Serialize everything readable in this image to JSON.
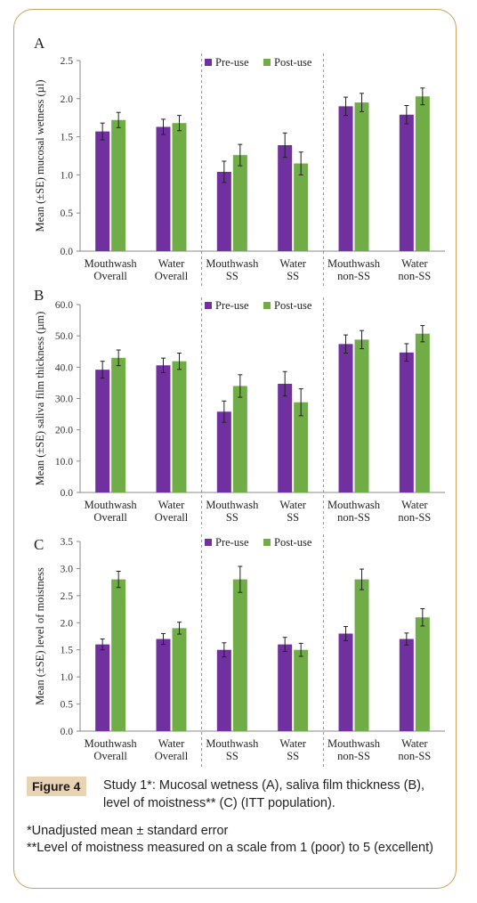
{
  "colors": {
    "pre": "#7030a0",
    "post": "#70ad47",
    "border": "#c8a15a",
    "labelbg": "#e8d3b4"
  },
  "chart_data": [
    {
      "type": "bar",
      "panel_label": "A",
      "ylabel": "Mean (±SE) mucosal wetness (µl)",
      "ylim": [
        0,
        2.5
      ],
      "yticks": [
        "0.0",
        "0.5",
        "1.0",
        "1.5",
        "2.0",
        "2.5"
      ],
      "categories": [
        "Mouthwash\nOverall",
        "Water\nOverall",
        "Mouthwash\nSS",
        "Water\nSS",
        "Mouthwash\nnon-SS",
        "Water\nnon-SS"
      ],
      "legend": "top",
      "series": [
        {
          "name": "Pre-use",
          "values": [
            1.57,
            1.63,
            1.04,
            1.39,
            1.9,
            1.79
          ],
          "err": [
            0.11,
            0.1,
            0.14,
            0.16,
            0.12,
            0.12
          ]
        },
        {
          "name": "Post-use",
          "values": [
            1.72,
            1.68,
            1.26,
            1.15,
            1.95,
            2.03
          ],
          "err": [
            0.1,
            0.1,
            0.14,
            0.15,
            0.12,
            0.11
          ]
        }
      ]
    },
    {
      "type": "bar",
      "panel_label": "B",
      "ylabel": "Mean (±SE) saliva film thickness (µm)",
      "ylim": [
        0,
        60
      ],
      "yticks": [
        "0.0",
        "10.0",
        "20.0",
        "30.0",
        "40.0",
        "50.0",
        "60.0"
      ],
      "categories": [
        "Mouthwash\nOverall",
        "Water\nOverall",
        "Mouthwash\nSS",
        "Water\nSS",
        "Mouthwash\nnon-SS",
        "Water\nnon-SS"
      ],
      "legend": "top",
      "series": [
        {
          "name": "Pre-use",
          "values": [
            39.2,
            40.6,
            25.8,
            34.7,
            47.4,
            44.7
          ],
          "err": [
            2.7,
            2.3,
            3.4,
            3.9,
            2.9,
            2.8
          ]
        },
        {
          "name": "Post-use",
          "values": [
            43.0,
            41.9,
            34.0,
            28.8,
            48.8,
            50.7
          ],
          "err": [
            2.5,
            2.6,
            3.6,
            4.3,
            2.9,
            2.6
          ]
        }
      ]
    },
    {
      "type": "bar",
      "panel_label": "C",
      "ylabel": "Mean (±SE) level of moistness",
      "ylim": [
        0,
        3.5
      ],
      "yticks": [
        "0.0",
        "0.5",
        "1.0",
        "1.5",
        "2.0",
        "2.5",
        "3.0",
        "3.5"
      ],
      "categories": [
        "Mouthwash\nOverall",
        "Water\nOverall",
        "Mouthwash\nSS",
        "Water\nSS",
        "Mouthwash\nnon-SS",
        "Water\nnon-SS"
      ],
      "legend": "top",
      "series": [
        {
          "name": "Pre-use",
          "values": [
            1.6,
            1.7,
            1.5,
            1.6,
            1.8,
            1.7
          ],
          "err": [
            0.1,
            0.1,
            0.13,
            0.13,
            0.13,
            0.11
          ]
        },
        {
          "name": "Post-use",
          "values": [
            2.8,
            1.9,
            2.8,
            1.5,
            2.8,
            2.1
          ],
          "err": [
            0.15,
            0.11,
            0.24,
            0.12,
            0.19,
            0.16
          ]
        }
      ]
    }
  ],
  "caption": {
    "label": "Figure 4",
    "text": "Study 1*: Mucosal wetness (A), saliva film thickness (B), level of moistness** (C) (ITT population).",
    "note1": "*Unadjusted mean ± standard error",
    "note2": "**Level of moistness measured on a scale from 1 (poor) to 5 (excellent)"
  }
}
